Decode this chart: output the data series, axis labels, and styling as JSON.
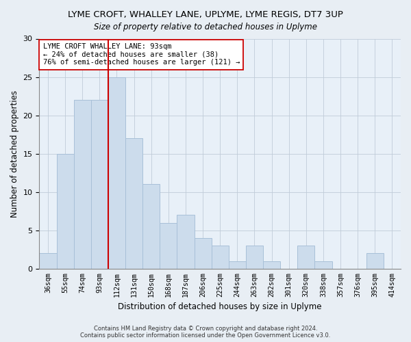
{
  "title": "LYME CROFT, WHALLEY LANE, UPLYME, LYME REGIS, DT7 3UP",
  "subtitle": "Size of property relative to detached houses in Uplyme",
  "xlabel": "Distribution of detached houses by size in Uplyme",
  "ylabel": "Number of detached properties",
  "categories": [
    "36sqm",
    "55sqm",
    "74sqm",
    "93sqm",
    "112sqm",
    "131sqm",
    "150sqm",
    "168sqm",
    "187sqm",
    "206sqm",
    "225sqm",
    "244sqm",
    "263sqm",
    "282sqm",
    "301sqm",
    "320sqm",
    "338sqm",
    "357sqm",
    "376sqm",
    "395sqm",
    "414sqm"
  ],
  "values": [
    2,
    15,
    22,
    22,
    25,
    17,
    11,
    6,
    7,
    4,
    3,
    1,
    3,
    1,
    0,
    3,
    1,
    0,
    0,
    2,
    0
  ],
  "bar_color": "#ccdcec",
  "bar_edge_color": "#a8c0d8",
  "vline_after_index": 3,
  "vline_color": "#cc0000",
  "annotation_text": "LYME CROFT WHALLEY LANE: 93sqm\n← 24% of detached houses are smaller (38)\n76% of semi-detached houses are larger (121) →",
  "annotation_box_color": "#ffffff",
  "annotation_box_edge": "#cc0000",
  "ylim": [
    0,
    30
  ],
  "yticks": [
    0,
    5,
    10,
    15,
    20,
    25,
    30
  ],
  "footer_line1": "Contains HM Land Registry data © Crown copyright and database right 2024.",
  "footer_line2": "Contains public sector information licensed under the Open Government Licence v3.0.",
  "bg_color": "#e8eef4",
  "plot_bg_color": "#e8f0f8"
}
